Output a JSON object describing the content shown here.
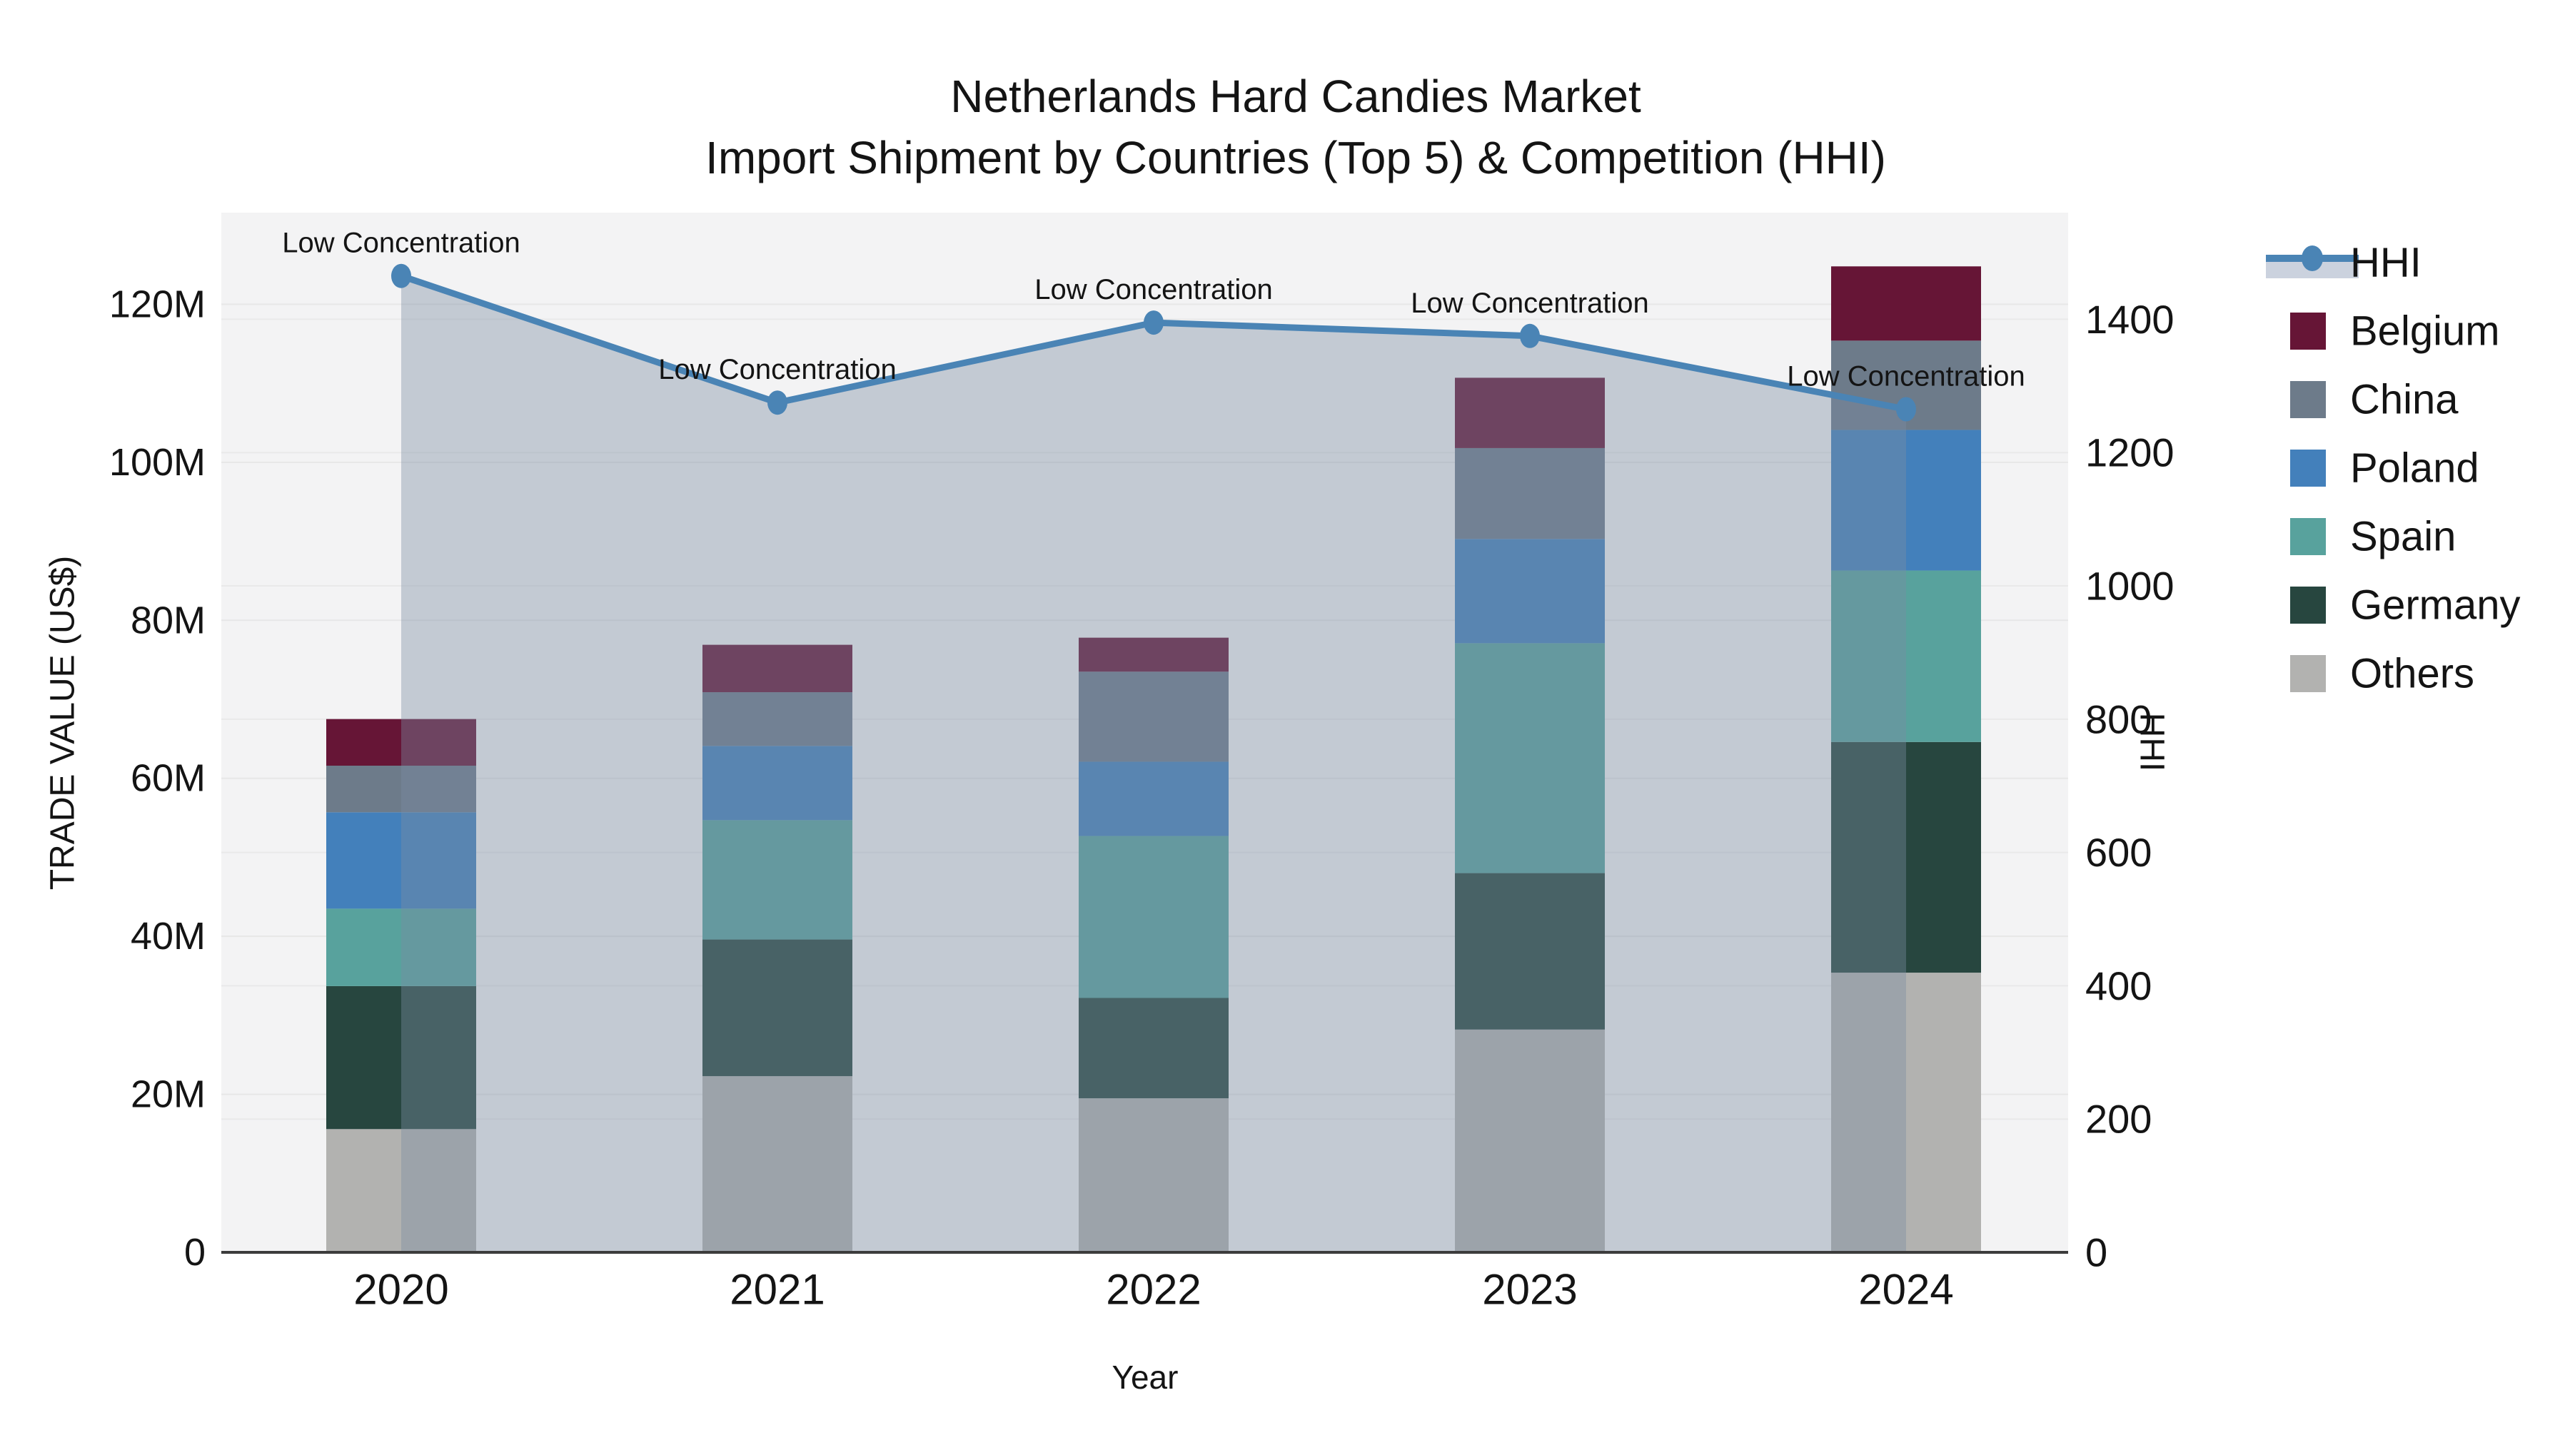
{
  "title": {
    "line1": "Netherlands Hard Candies Market",
    "line2": "Import Shipment by Countries (Top 5) & Competition (HHI)"
  },
  "axes": {
    "x_label": "Year",
    "y_left_label": "TRADE VALUE (US$)",
    "y_right_label": "HHI",
    "y_left_ticks": [
      "0",
      "20M",
      "40M",
      "60M",
      "80M",
      "100M",
      "120M"
    ],
    "y_right_ticks": [
      "0",
      "200",
      "400",
      "600",
      "800",
      "1000",
      "1200",
      "1400"
    ]
  },
  "legend": {
    "entries": [
      {
        "label": "HHI",
        "type": "line",
        "color": "#4a84b5",
        "band": "#cbd2de"
      },
      {
        "label": "Belgium",
        "type": "patch",
        "color": "#661536"
      },
      {
        "label": "China",
        "type": "patch",
        "color": "#6d7b8a"
      },
      {
        "label": "Poland",
        "type": "patch",
        "color": "#4380bb"
      },
      {
        "label": "Spain",
        "type": "patch",
        "color": "#58a29d"
      },
      {
        "label": "Germany",
        "type": "patch",
        "color": "#27463f"
      },
      {
        "label": "Others",
        "type": "patch",
        "color": "#b2b2b0"
      }
    ]
  },
  "chart_data": {
    "type": "stacked-bar + line (dual axis)",
    "categories": [
      "2020",
      "2021",
      "2022",
      "2023",
      "2024"
    ],
    "unit_left": "US$ (millions)",
    "series": [
      {
        "name": "Others",
        "color": "#b2b2b0",
        "values": [
          15.6,
          22.3,
          19.5,
          28.2,
          35.4
        ]
      },
      {
        "name": "Germany",
        "color": "#27463f",
        "values": [
          18.1,
          17.3,
          12.7,
          19.8,
          29.2
        ]
      },
      {
        "name": "Spain",
        "color": "#58a29d",
        "values": [
          9.8,
          15.1,
          20.5,
          29.1,
          21.7
        ]
      },
      {
        "name": "Poland",
        "color": "#4380bb",
        "values": [
          12.2,
          9.4,
          9.4,
          13.2,
          17.8
        ]
      },
      {
        "name": "China",
        "color": "#6d7b8a",
        "values": [
          5.9,
          6.8,
          11.4,
          11.5,
          11.3
        ]
      },
      {
        "name": "Belgium",
        "color": "#661536",
        "values": [
          5.9,
          6.0,
          4.3,
          8.9,
          9.4
        ]
      }
    ],
    "bar_totals": [
      67.5,
      76.9,
      77.8,
      110.7,
      124.8
    ],
    "line_series": {
      "name": "HHI",
      "axis": "right",
      "color": "#4a84b5",
      "area_fill": "rgba(122,139,163,0.40)",
      "values": [
        1465,
        1275,
        1395,
        1375,
        1265
      ],
      "point_annotations": [
        "Low Concentration",
        "Low Concentration",
        "Low Concentration",
        "Low Concentration",
        "Low Concentration"
      ]
    },
    "ylim_left": [
      0,
      131.6
    ],
    "ylim_right": [
      0,
      1560
    ],
    "grid": "horizontal gridlines for both axes",
    "legend_position": "right of plot",
    "plot_background": "#f3f3f4"
  }
}
